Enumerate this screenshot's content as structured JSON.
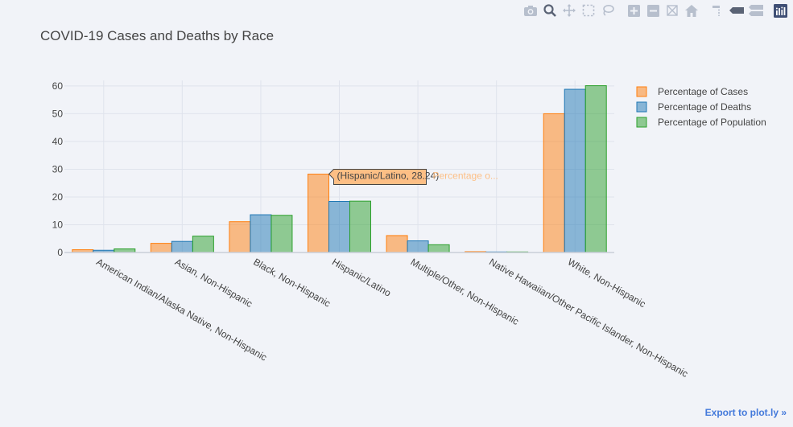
{
  "toolbar": {
    "icons": [
      "camera-icon",
      "zoom-icon",
      "pan-icon",
      "box-select-icon",
      "lasso-icon",
      "zoom-in-icon",
      "zoom-out-icon",
      "autoscale-icon",
      "reset-axes-icon",
      "spike-lines-icon",
      "hover-closest-icon",
      "hover-compare-icon",
      "plotly-logo-icon"
    ]
  },
  "export_link": "Export to plot.ly »",
  "tooltip": {
    "text": "(Hispanic/Latino, 28.24)",
    "series_name": "Percentage o...",
    "category_index": 3,
    "series_index": 0
  },
  "colors": {
    "cases": "#ff7f0e",
    "deaths": "#1f77b4",
    "population": "#2ca02c",
    "text": "#444444",
    "grid": "#dfe3ec"
  },
  "chart_data": {
    "type": "bar",
    "title": "COVID-19 Cases and Deaths by Race",
    "xlabel": "",
    "ylabel": "",
    "ylim": [
      0,
      62
    ],
    "yticks": [
      0,
      10,
      20,
      30,
      40,
      50,
      60
    ],
    "grid": true,
    "legend_position": "top-right",
    "categories": [
      "American Indian/Alaska Native, Non-Hispanic",
      "Asian, Non-Hispanic",
      "Black, Non-Hispanic",
      "Hispanic/Latino",
      "Multiple/Other, Non-Hispanic",
      "Native Hawaiian/Other Pacific Islander, Non-Hispanic",
      "White, Non-Hispanic"
    ],
    "series": [
      {
        "name": "Percentage of Cases",
        "color": "#ff7f0e",
        "values": [
          1.0,
          3.3,
          11.1,
          28.24,
          6.1,
          0.3,
          50.0
        ]
      },
      {
        "name": "Percentage of Deaths",
        "color": "#1f77b4",
        "values": [
          0.8,
          4.0,
          13.6,
          18.4,
          4.2,
          0.2,
          58.8
        ]
      },
      {
        "name": "Percentage of Population",
        "color": "#2ca02c",
        "values": [
          1.3,
          5.9,
          13.4,
          18.5,
          2.8,
          0.2,
          60.1
        ]
      }
    ]
  }
}
